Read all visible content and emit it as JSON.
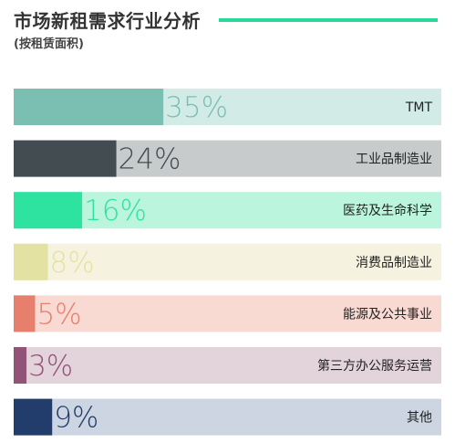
{
  "header": {
    "title": "市场新租需求行业分析",
    "subtitle": "(按租赁面积)"
  },
  "colors": {
    "title_line": "#2ad89a"
  },
  "chart_data": {
    "type": "bar",
    "orientation": "horizontal",
    "title": "市场新租需求行业分析",
    "subtitle": "(按租赁面积)",
    "xlim": [
      0,
      100
    ],
    "grid": false,
    "legend": "none",
    "bars": [
      {
        "category": "TMT",
        "value": 35,
        "label": "35%",
        "color": "#7bbfb2",
        "track": "#d3ebe6"
      },
      {
        "category": "工业品制造业",
        "value": 24,
        "label": "24%",
        "color": "#434d51",
        "track": "#c7cbcc"
      },
      {
        "category": "医药及生命科学",
        "value": 16,
        "label": "16%",
        "color": "#2ee3a0",
        "track": "#bcf5de"
      },
      {
        "category": "消费品制造业",
        "value": 8,
        "label": "8%",
        "color": "#e4e2a2",
        "track": "#f5f3df"
      },
      {
        "category": "能源及公共事业",
        "value": 5,
        "label": "5%",
        "color": "#e67f6c",
        "track": "#f9dad2"
      },
      {
        "category": "第三方办公服务运营",
        "value": 3,
        "label": "3%",
        "color": "#915378",
        "track": "#e3d3da"
      },
      {
        "category": "其他",
        "value": 9,
        "label": "9%",
        "color": "#223c6b",
        "track": "#ccd5e1"
      }
    ]
  }
}
